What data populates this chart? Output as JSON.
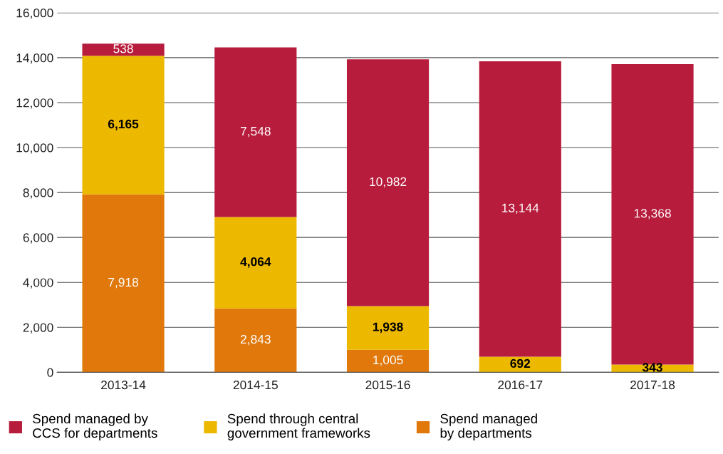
{
  "chart_data": {
    "type": "bar",
    "stacked": true,
    "categories": [
      "2013-14",
      "2014-15",
      "2015-16",
      "2016-17",
      "2017-18"
    ],
    "series": [
      {
        "name": "Spend managed\nby departments",
        "color": "#e0780b",
        "values": [
          7918,
          2843,
          1005,
          null,
          null
        ],
        "value_labels": [
          "7,918",
          "2,843",
          "1,005",
          null,
          null
        ]
      },
      {
        "name": "Spend through central\ngovernment frameworks",
        "color": "#ecb800",
        "values": [
          6165,
          4064,
          1938,
          692,
          343
        ],
        "value_labels": [
          "6,165",
          "4,064",
          "1,938",
          "692",
          "343"
        ]
      },
      {
        "name": "Spend managed by\nCCS for departments",
        "color": "#b71c3c",
        "values": [
          538,
          7548,
          10982,
          13144,
          13368
        ],
        "value_labels": [
          "538",
          "7,548",
          "10,982",
          "13,144",
          "13,368"
        ]
      }
    ],
    "ylim": [
      0,
      16000
    ],
    "yticks": [
      0,
      {
        "value": 2000,
        "label": "2,000"
      },
      {
        "value": 4000,
        "label": "4,000"
      },
      {
        "value": 6000,
        "label": "6,000"
      },
      {
        "value": 8000,
        "label": "8,000"
      },
      {
        "value": 10000,
        "label": "10,000"
      },
      {
        "value": 12000,
        "label": "12,000"
      },
      {
        "value": 14000,
        "label": "14,000"
      },
      {
        "value": 16000,
        "label": "16,000"
      }
    ],
    "grid": "y",
    "legend": "bottom"
  }
}
